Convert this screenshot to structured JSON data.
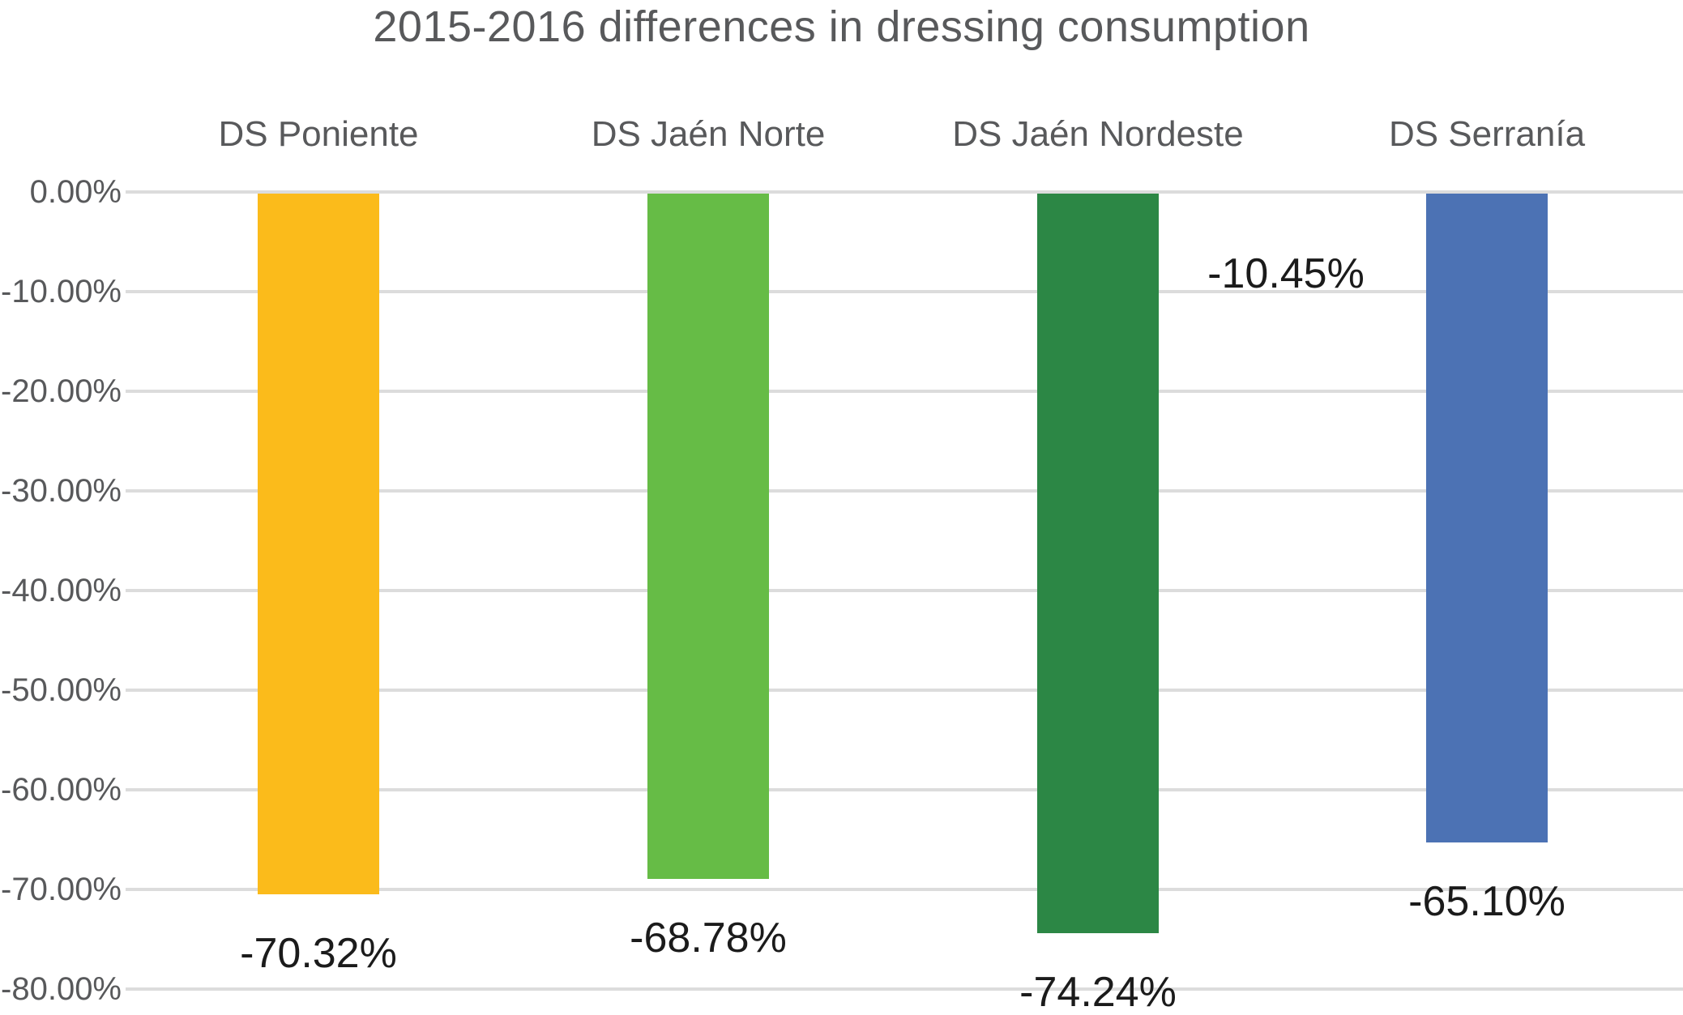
{
  "title": "2015-2016 differences in dressing consumption",
  "chart_data": {
    "type": "bar",
    "categories": [
      "DS Poniente",
      "DS Jaén Norte",
      "DS Jaén Nordeste",
      "DS Serranía"
    ],
    "values": [
      -70.32,
      -68.78,
      -74.24,
      -65.1
    ],
    "data_labels": [
      "-70.32%",
      "-68.78%",
      "-74.24%",
      "-65.10%"
    ],
    "bar_colors": [
      "#FBBB1B",
      "#66BC46",
      "#2C8745",
      "#4C72B4"
    ],
    "y_ticks": [
      "0.00%",
      "-10.00%",
      "-20.00%",
      "-30.00%",
      "-40.00%",
      "-50.00%",
      "-60.00%",
      "-70.00%",
      "-80.00%"
    ],
    "ylim": [
      -80,
      0
    ],
    "xlabel": "",
    "ylabel": "",
    "grid": true,
    "legend": false,
    "annotation": {
      "text": "-10.45%",
      "value": -10.45
    }
  },
  "colors": {
    "gridline": "#DCDCDC",
    "axis_text": "#58595B",
    "title_text": "#58595B",
    "value_text": "#1B1B1B",
    "background": "#FFFFFF"
  }
}
